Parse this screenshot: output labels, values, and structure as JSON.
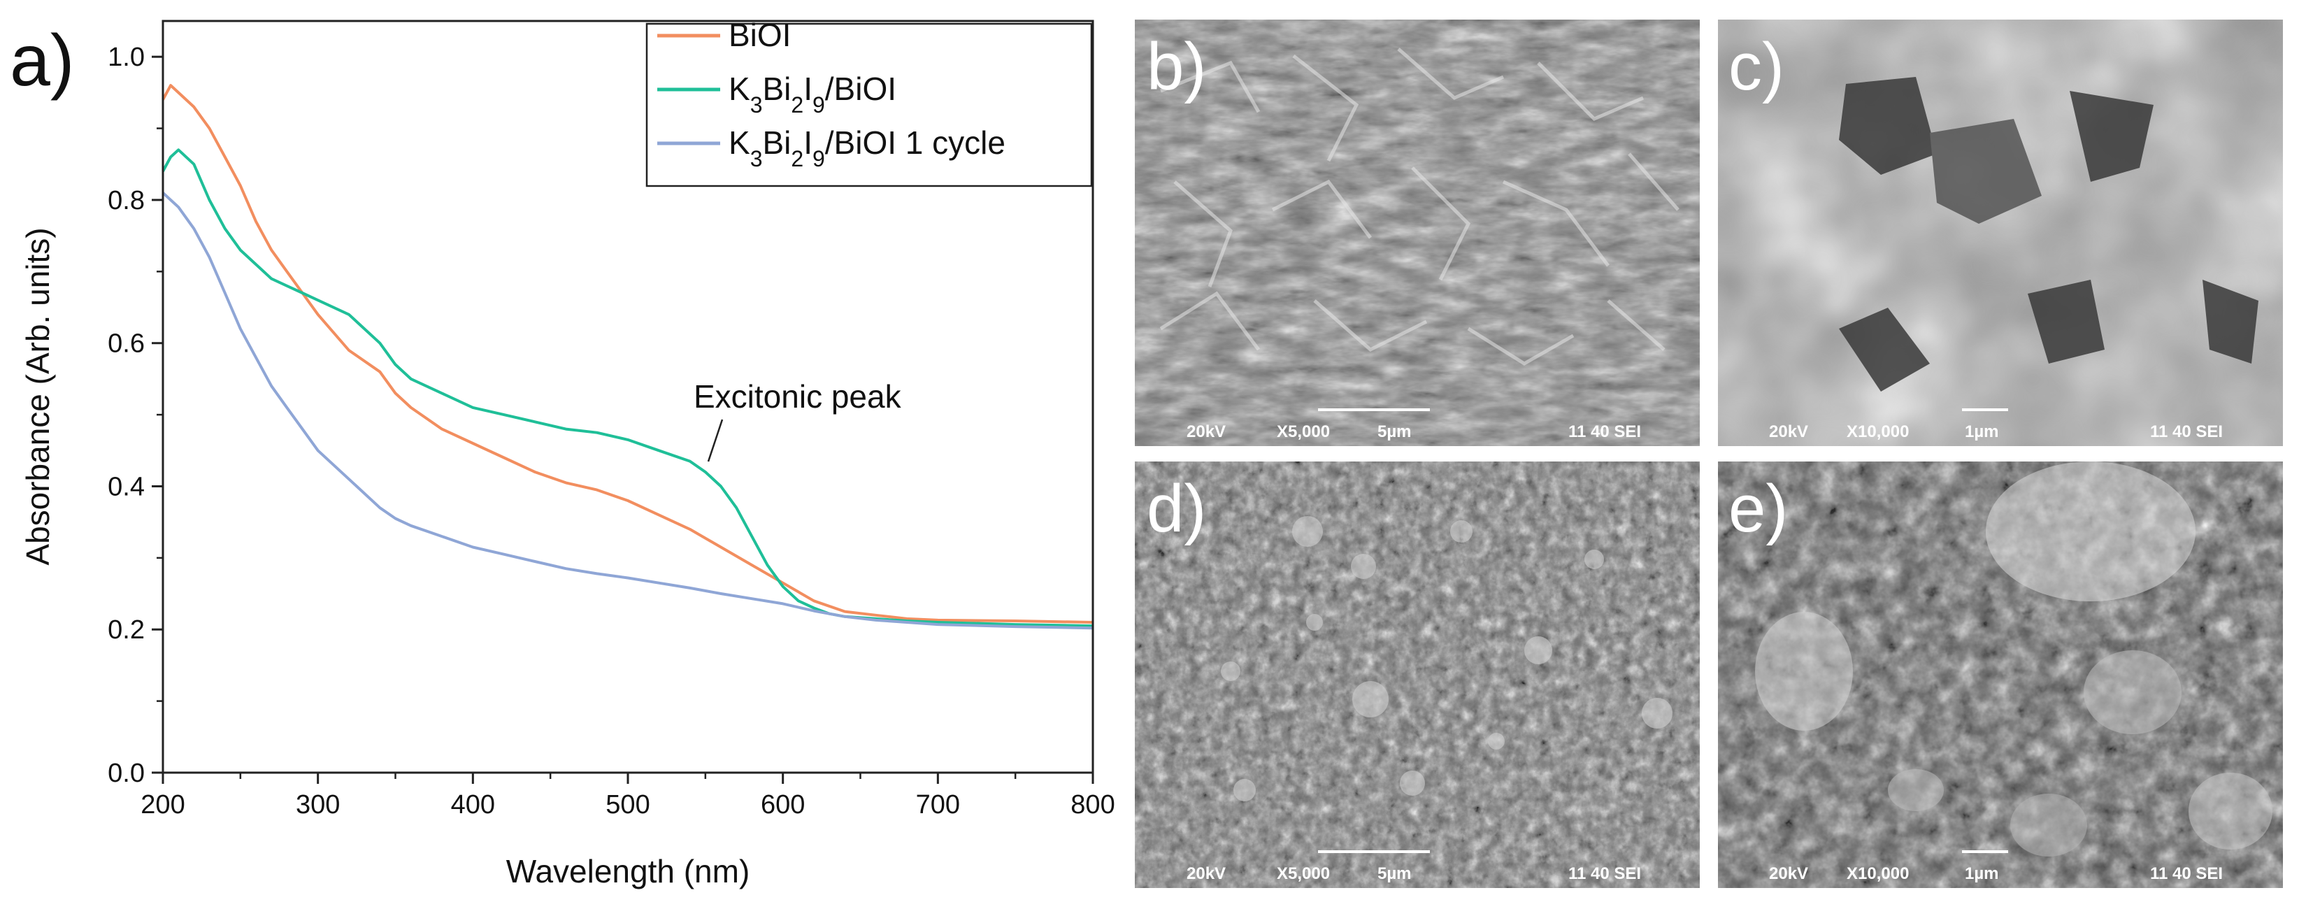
{
  "chart_data": {
    "type": "line",
    "panel_label": "a)",
    "xlabel": "Wavelength (nm)",
    "ylabel": "Absorbance (Arb. units)",
    "xlim": [
      200,
      800
    ],
    "ylim": [
      0,
      1.05
    ],
    "x_ticks": [
      200,
      300,
      400,
      500,
      600,
      700,
      800
    ],
    "y_ticks": [
      0.0,
      0.2,
      0.4,
      0.6,
      0.8,
      1.0
    ],
    "x_tick_labels": [
      "200",
      "300",
      "400",
      "500",
      "600",
      "700",
      "800"
    ],
    "y_tick_labels": [
      "0.0",
      "0.2",
      "0.4",
      "0.6",
      "0.8",
      "1.0"
    ],
    "grid": false,
    "legend_position": "top-right",
    "legend": {
      "items": [
        {
          "prefix": "BiOI",
          "parts": []
        },
        {
          "parts": [
            [
              "K",
              ""
            ],
            [
              "3",
              "sub"
            ],
            [
              "Bi",
              ""
            ],
            [
              "2",
              "sub"
            ],
            [
              "I",
              ""
            ],
            [
              "9",
              "sub"
            ],
            [
              "/BiOI",
              ""
            ]
          ]
        },
        {
          "parts": [
            [
              "K",
              ""
            ],
            [
              "3",
              "sub"
            ],
            [
              "Bi",
              ""
            ],
            [
              "2",
              "sub"
            ],
            [
              "I",
              ""
            ],
            [
              "9",
              "sub"
            ],
            [
              "/BiOI 1 cycle",
              ""
            ]
          ]
        }
      ]
    },
    "annotation": {
      "text": "Excitonic peak",
      "x": 550,
      "y": 0.43
    },
    "series": [
      {
        "name": "BiOI",
        "color": "#f28e5f",
        "x": [
          200,
          205,
          210,
          220,
          230,
          240,
          250,
          260,
          270,
          280,
          290,
          300,
          320,
          340,
          350,
          360,
          380,
          400,
          420,
          440,
          460,
          480,
          500,
          520,
          540,
          560,
          580,
          600,
          620,
          640,
          660,
          680,
          700,
          750,
          800
        ],
        "y": [
          0.94,
          0.96,
          0.95,
          0.93,
          0.9,
          0.86,
          0.82,
          0.77,
          0.73,
          0.7,
          0.67,
          0.64,
          0.59,
          0.56,
          0.53,
          0.51,
          0.48,
          0.46,
          0.44,
          0.42,
          0.405,
          0.395,
          0.38,
          0.36,
          0.34,
          0.315,
          0.29,
          0.265,
          0.24,
          0.225,
          0.22,
          0.215,
          0.213,
          0.212,
          0.21
        ]
      },
      {
        "name": "K3Bi2I9/BiOI",
        "color": "#1fbf98",
        "x": [
          200,
          205,
          210,
          220,
          230,
          240,
          250,
          260,
          270,
          280,
          290,
          300,
          320,
          340,
          350,
          360,
          380,
          400,
          420,
          440,
          460,
          480,
          500,
          520,
          540,
          550,
          560,
          570,
          580,
          590,
          600,
          610,
          620,
          630,
          640,
          660,
          680,
          700,
          750,
          800
        ],
        "y": [
          0.84,
          0.86,
          0.87,
          0.85,
          0.8,
          0.76,
          0.73,
          0.71,
          0.69,
          0.68,
          0.67,
          0.66,
          0.64,
          0.6,
          0.57,
          0.55,
          0.53,
          0.51,
          0.5,
          0.49,
          0.48,
          0.475,
          0.465,
          0.45,
          0.435,
          0.42,
          0.4,
          0.37,
          0.33,
          0.29,
          0.26,
          0.24,
          0.23,
          0.222,
          0.218,
          0.215,
          0.212,
          0.21,
          0.207,
          0.205
        ]
      },
      {
        "name": "K3Bi2I9/BiOI 1 cycle",
        "color": "#8fa6d6",
        "x": [
          200,
          205,
          210,
          220,
          230,
          240,
          250,
          260,
          270,
          280,
          290,
          300,
          320,
          340,
          350,
          360,
          380,
          400,
          420,
          440,
          460,
          480,
          500,
          520,
          540,
          560,
          580,
          600,
          620,
          640,
          660,
          680,
          700,
          750,
          800
        ],
        "y": [
          0.81,
          0.8,
          0.79,
          0.76,
          0.72,
          0.67,
          0.62,
          0.58,
          0.54,
          0.51,
          0.48,
          0.45,
          0.41,
          0.37,
          0.355,
          0.345,
          0.33,
          0.315,
          0.305,
          0.295,
          0.285,
          0.278,
          0.272,
          0.265,
          0.258,
          0.25,
          0.243,
          0.236,
          0.226,
          0.218,
          0.213,
          0.21,
          0.207,
          0.204,
          0.202
        ]
      }
    ]
  },
  "sem_panels": [
    {
      "id": "b",
      "label": "b)",
      "info_left": "20kV",
      "info_mag": "X5,000",
      "scale": "5µm",
      "info_right": "11 40 SEI",
      "texture": "flakes"
    },
    {
      "id": "c",
      "label": "c)",
      "info_left": "20kV",
      "info_mag": "X10,000",
      "scale": "1µm",
      "info_right": "11 40 SEI",
      "texture": "web"
    },
    {
      "id": "d",
      "label": "d)",
      "info_left": "20kV",
      "info_mag": "X5,000",
      "scale": "5µm",
      "info_right": "11 40 SEI",
      "texture": "grains"
    },
    {
      "id": "e",
      "label": "e)",
      "info_left": "20kV",
      "info_mag": "X10,000",
      "scale": "1µm",
      "info_right": "11 40 SEI",
      "texture": "clusters"
    }
  ]
}
